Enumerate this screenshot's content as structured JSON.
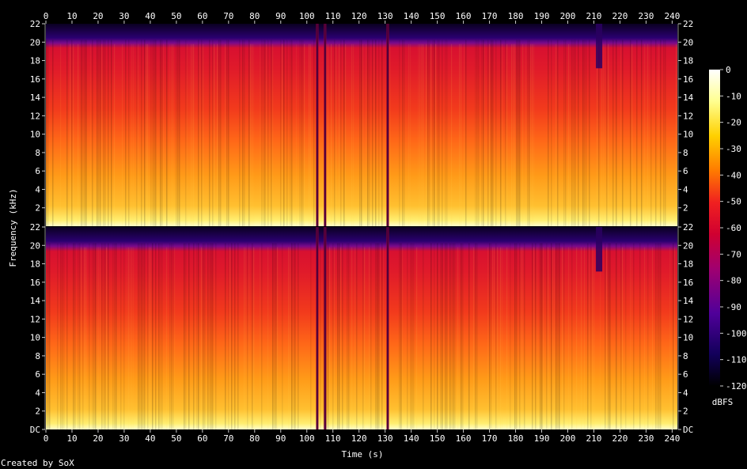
{
  "chart_data": {
    "type": "heatmap",
    "title": "",
    "xlabel": "Time (s)",
    "ylabel": "Frequency (kHz)",
    "xlim": [
      0,
      242
    ],
    "ylim_khz": [
      0,
      22
    ],
    "x_ticks": [
      "0",
      "10",
      "20",
      "30",
      "40",
      "50",
      "60",
      "70",
      "80",
      "90",
      "100",
      "110",
      "120",
      "130",
      "140",
      "150",
      "160",
      "170",
      "180",
      "190",
      "200",
      "210",
      "220",
      "230",
      "240"
    ],
    "y_ticks": [
      "DC",
      "2",
      "4",
      "6",
      "8",
      "10",
      "12",
      "14",
      "16",
      "18",
      "20",
      "22"
    ],
    "channels": 2,
    "colorbar": {
      "label": "dBFS",
      "ticks": [
        "0",
        "-10",
        "-20",
        "-30",
        "-40",
        "-50",
        "-60",
        "-70",
        "-80",
        "-90",
        "-100",
        "-110",
        "-120"
      ],
      "range": [
        -120,
        0
      ]
    },
    "colormap": [
      {
        "db": 0,
        "color": "#ffffff"
      },
      {
        "db": -12,
        "color": "#ffff90"
      },
      {
        "db": -25,
        "color": "#ffd000"
      },
      {
        "db": -38,
        "color": "#ff7a00"
      },
      {
        "db": -50,
        "color": "#f02020"
      },
      {
        "db": -62,
        "color": "#d00030"
      },
      {
        "db": -75,
        "color": "#a00070"
      },
      {
        "db": -92,
        "color": "#50009a"
      },
      {
        "db": -108,
        "color": "#12005a"
      },
      {
        "db": -120,
        "color": "#000000"
      }
    ],
    "dropouts_s": [
      104,
      107,
      131
    ],
    "high_freq_dip_s": 212
  },
  "footer": {
    "credit": "Created by SoX"
  }
}
